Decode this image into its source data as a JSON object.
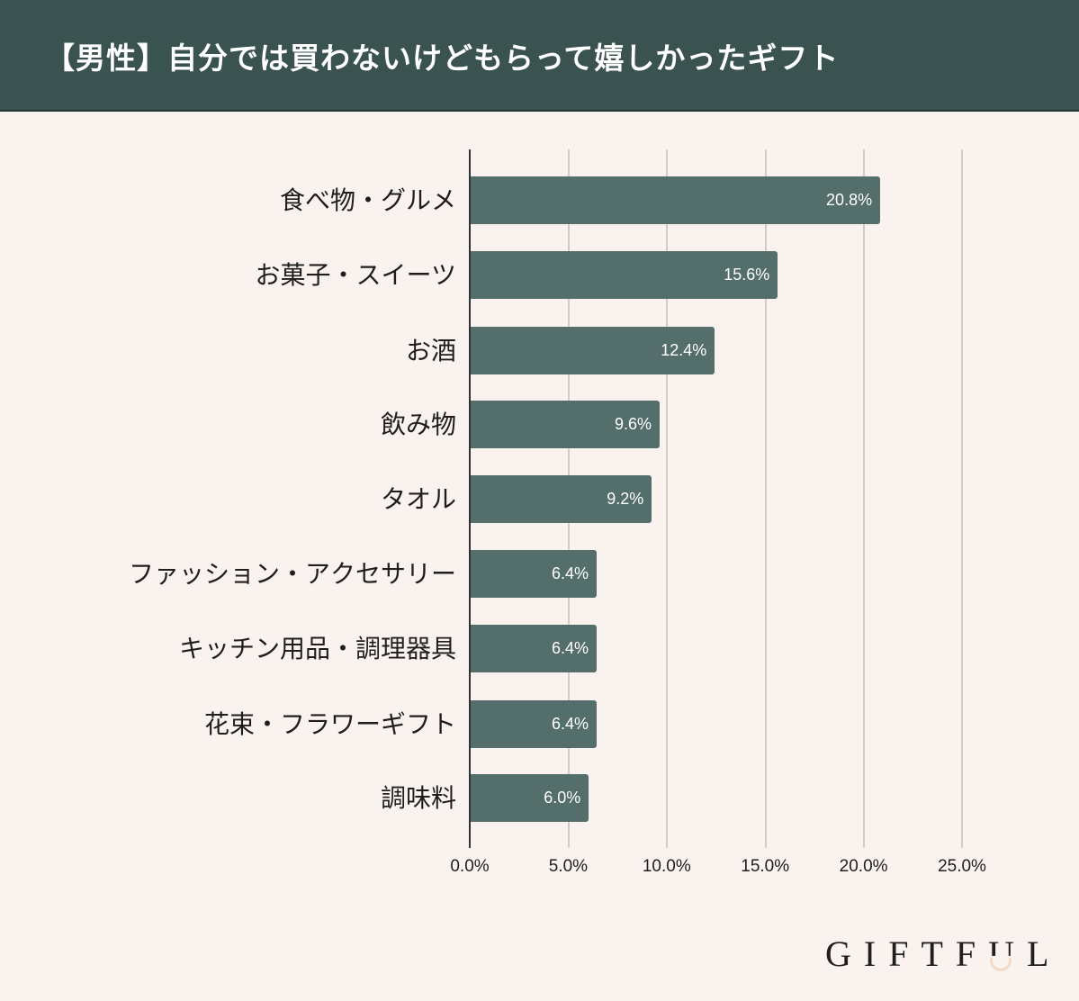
{
  "header": {
    "title": "【男性】自分では買わないけどもらって嬉しかったギフト",
    "background": "#3a5350"
  },
  "colors": {
    "background": "#faf2ee",
    "bar": "#546e6b",
    "grid": "#d6cbc8",
    "axis": "#333333",
    "logo_accent": "#f3d9c6"
  },
  "chart_data": {
    "type": "bar",
    "orientation": "horizontal",
    "title": "【男性】自分では買わないけどもらって嬉しかったギフト",
    "categories": [
      "食べ物・グルメ",
      "お菓子・スイーツ",
      "お酒",
      "飲み物",
      "タオル",
      "ファッション・アクセサリー",
      "キッチン用品・調理器具",
      "花束・フラワーギフト",
      "調味料"
    ],
    "values": [
      20.8,
      15.6,
      12.4,
      9.6,
      9.2,
      6.4,
      6.4,
      6.4,
      6.0
    ],
    "value_labels": [
      "20.8%",
      "15.6%",
      "12.4%",
      "9.6%",
      "9.2%",
      "6.4%",
      "6.4%",
      "6.4%",
      "6.0%"
    ],
    "xlabel": "",
    "ylabel": "",
    "xlim": [
      0,
      25
    ],
    "x_ticks": [
      "0.0%",
      "5.0%",
      "10.0%",
      "15.0%",
      "20.0%",
      "25.0%"
    ],
    "grid": true,
    "legend": null
  },
  "logo": {
    "text_before": "GIFTF",
    "u_letter": "U",
    "text_after": "L"
  }
}
